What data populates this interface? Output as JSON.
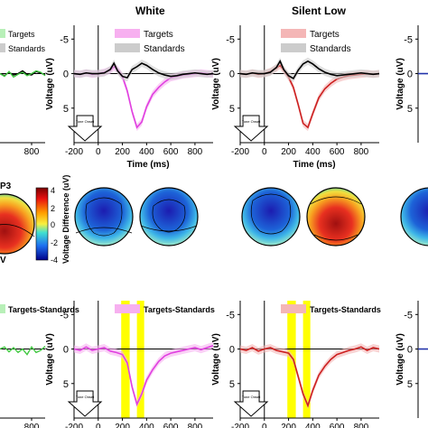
{
  "titles": {
    "white": "White",
    "silent_low": "Silent Low"
  },
  "colorbar": {
    "label": "Voltage Difference (uV)",
    "ticks": [
      "4",
      "2",
      "0",
      "-2",
      "-4"
    ]
  },
  "left_labels": {
    "p3": "P3",
    "a": "a",
    "v": "V"
  },
  "tone_onset": "Tone Onset",
  "colors": {
    "white_targets": "#e040e0",
    "white_shade": "#f7b0f0",
    "low_targets": "#cc2020",
    "low_shade": "#f4b6b6",
    "left_targets": "#44c844",
    "right_targets": "#2233aa",
    "standards": "#000000",
    "standards_shade": "#cccccc",
    "window": "#ffff00"
  },
  "chart_data": [
    {
      "type": "line",
      "panel": "white-erp",
      "x": [
        -200,
        -150,
        -100,
        -50,
        0,
        50,
        100,
        130,
        160,
        200,
        240,
        280,
        320,
        360,
        400,
        450,
        500,
        550,
        600,
        650,
        700,
        750,
        800,
        850,
        900,
        950
      ],
      "series": [
        {
          "name": "Targets",
          "values": [
            0,
            0.1,
            -0.1,
            0.1,
            0,
            -0.2,
            -0.5,
            -1.0,
            -0.6,
            0.4,
            2.5,
            5.5,
            7.8,
            7.0,
            4.8,
            3.0,
            2.0,
            1.2,
            0.6,
            0.4,
            0.2,
            0.1,
            0,
            -0.1,
            0,
            0.1
          ]
        },
        {
          "name": "Standards",
          "values": [
            0,
            0.1,
            -0.1,
            0,
            0,
            -0.1,
            -0.6,
            -1.5,
            -0.4,
            0.4,
            0.6,
            -0.6,
            -1.0,
            -1.5,
            -1.2,
            -0.6,
            -0.1,
            0.2,
            0.4,
            0.3,
            0.1,
            0,
            -0.1,
            0,
            0.1,
            0
          ]
        }
      ],
      "xticks": [
        "-200",
        "0",
        "200",
        "400",
        "600",
        "800"
      ],
      "yticks": [
        "-5",
        "0",
        "5"
      ],
      "xlabel": "Time (ms)",
      "ylabel": "Voltage (uV)",
      "xlim": [
        -200,
        950
      ],
      "ylim": [
        -7,
        10
      ]
    },
    {
      "type": "line",
      "panel": "silent-low-erp",
      "x": [
        -200,
        -150,
        -100,
        -50,
        0,
        50,
        100,
        130,
        160,
        200,
        240,
        280,
        320,
        360,
        400,
        450,
        500,
        550,
        600,
        650,
        700,
        750,
        800,
        850,
        900,
        950
      ],
      "series": [
        {
          "name": "Targets",
          "values": [
            0,
            0.1,
            -0.1,
            0.1,
            0,
            -0.3,
            -0.8,
            -1.2,
            -0.5,
            0.5,
            2.0,
            4.5,
            7.2,
            7.8,
            5.8,
            3.5,
            2.2,
            1.4,
            0.8,
            0.5,
            0.3,
            0.2,
            0.1,
            0,
            0.1,
            0
          ]
        },
        {
          "name": "Standards",
          "values": [
            0,
            0.1,
            -0.1,
            0,
            0,
            -0.2,
            -0.9,
            -1.8,
            -0.6,
            0.3,
            0.7,
            -0.5,
            -1.4,
            -1.8,
            -1.4,
            -0.7,
            -0.2,
            0.1,
            0.3,
            0.2,
            0.1,
            0,
            -0.1,
            0,
            0.1,
            0
          ]
        }
      ],
      "xticks": [
        "-200",
        "0",
        "200",
        "400",
        "600",
        "800"
      ],
      "yticks": [
        "-5",
        "0",
        "5"
      ],
      "xlabel": "Time (ms)",
      "ylabel": "Voltage (uV)",
      "xlim": [
        -200,
        950
      ],
      "ylim": [
        -7,
        10
      ]
    },
    {
      "type": "line",
      "panel": "white-diff",
      "x": [
        -200,
        -150,
        -100,
        -50,
        0,
        50,
        100,
        150,
        200,
        240,
        280,
        320,
        360,
        400,
        450,
        500,
        550,
        600,
        650,
        700,
        750,
        800,
        850,
        900,
        950
      ],
      "series": [
        {
          "name": "Targets-Standards",
          "values": [
            0,
            0.2,
            -0.3,
            0.2,
            0,
            -0.2,
            0.3,
            0.5,
            0.8,
            2.0,
            5.5,
            8.0,
            6.5,
            4.5,
            3.0,
            1.8,
            1.0,
            0.6,
            0.4,
            0.2,
            0,
            -0.2,
            0.1,
            -0.2,
            -0.5
          ]
        }
      ],
      "windows": [
        [
          190,
          260
        ],
        [
          320,
          380
        ]
      ],
      "xticks": [
        "-200",
        "0",
        "200",
        "400",
        "600",
        "800"
      ],
      "yticks": [
        "-5",
        "0",
        "5"
      ],
      "xlabel": "Time (ms)",
      "ylabel": "Voltage (uV)",
      "xlim": [
        -200,
        950
      ],
      "ylim": [
        -7,
        10
      ]
    },
    {
      "type": "line",
      "panel": "silent-low-diff",
      "x": [
        -200,
        -150,
        -100,
        -50,
        0,
        50,
        100,
        150,
        200,
        240,
        280,
        320,
        360,
        400,
        450,
        500,
        550,
        600,
        650,
        700,
        750,
        800,
        850,
        900,
        950
      ],
      "series": [
        {
          "name": "Targets-Standards",
          "values": [
            0,
            0.2,
            -0.2,
            0.3,
            0,
            -0.2,
            0.2,
            0.4,
            0.6,
            1.5,
            4.0,
            6.5,
            8.2,
            6.0,
            3.8,
            2.5,
            1.5,
            0.8,
            0.5,
            0.2,
            0,
            -0.3,
            0.2,
            -0.2,
            0
          ]
        }
      ],
      "windows": [
        [
          190,
          260
        ],
        [
          320,
          380
        ]
      ],
      "xticks": [
        "-200",
        "0",
        "200",
        "400",
        "600",
        "800"
      ],
      "yticks": [
        "-5",
        "0",
        "5"
      ],
      "xlabel": "Time (ms)",
      "ylabel": "Voltage (uV)",
      "xlim": [
        -200,
        950
      ],
      "ylim": [
        -7,
        10
      ]
    },
    {
      "type": "line",
      "panel": "left-partial-erp",
      "series": [
        {
          "name": "Targets",
          "values": [
            0,
            0.4,
            -0.3,
            0.5,
            0.1,
            -0.2,
            0.3,
            0,
            -0.4,
            -0.2,
            0.3
          ]
        },
        {
          "name": "Standards",
          "values": [
            0,
            0.3,
            -0.2,
            0.2,
            0,
            -0.4,
            0.1,
            0.2,
            -0.3,
            -0.1,
            0.2
          ]
        }
      ],
      "xticks": [
        "800"
      ]
    },
    {
      "type": "line",
      "panel": "left-partial-diff",
      "series": [
        {
          "name": "Targets-Standards",
          "values": [
            0,
            -0.3,
            0.4,
            -0.2,
            0.5,
            0,
            0.8,
            -0.3,
            0.5,
            0.2,
            -0.4
          ]
        }
      ],
      "xticks": [
        "800"
      ]
    }
  ]
}
